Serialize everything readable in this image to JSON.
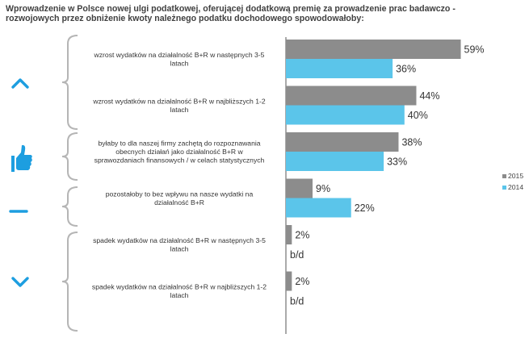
{
  "colors": {
    "series_2015": "#8c8c8c",
    "series_2014": "#5bc5ea",
    "icon": "#1d9ee0",
    "brace": "#b5b5b5",
    "axis": "#555555"
  },
  "chart_data": {
    "type": "bar",
    "orientation": "horizontal",
    "title": "Wprowadzenie w Polsce nowej ulgi podatkowej, oferującej dodatkową premię za prowadzenie prac badawczo - rozwojowych przez obniżenie kwoty należnego podatku dochodowego spowodowałoby:",
    "title_lines": [
      "Wprowadzenie w Polsce nowej ulgi podatkowej, oferującej dodatkową premię za prowadzenie prac badawczo -",
      "rozwojowych przez obniżenie kwoty należnego podatku dochodowego spowodowałoby:"
    ],
    "xlim": [
      0,
      100
    ],
    "legend_position": "right",
    "categories": [
      [
        "wzrost wydatków na działalność B+R w następnych 3-5",
        "latach"
      ],
      [
        "wzrost wydatków na działalność B+R w najbliższych 1-2",
        "latach"
      ],
      [
        "byłaby to dla naszej firmy zachętą do rozpoznawania",
        "obecnych działań jako działalność B+R w",
        "sprawozdaniach finansowych / w celach statystycznych"
      ],
      [
        "pozostałoby to bez wpływu na nasze wydatki na",
        "działalność B+R"
      ],
      [
        "spadek wydatków na działalność B+R w następnych 3-5",
        "latach"
      ],
      [
        "spadek wydatków na działalność B+R w najbliższych 1-2",
        "latach"
      ]
    ],
    "series": [
      {
        "name": "2015",
        "values": [
          59,
          44,
          38,
          9,
          2,
          2
        ],
        "labels": [
          "59%",
          "44%",
          "38%",
          "9%",
          "2%",
          "2%"
        ]
      },
      {
        "name": "2014",
        "values": [
          36,
          40,
          33,
          22,
          null,
          null
        ],
        "labels": [
          "36%",
          "40%",
          "33%",
          "22%",
          "b/d",
          "b/d"
        ]
      }
    ],
    "groups": [
      {
        "icon": "chevron-up-icon",
        "category_index": [
          0,
          1
        ]
      },
      {
        "icon": "thumbs-up-icon",
        "category_index": [
          2
        ]
      },
      {
        "icon": "minus-icon",
        "category_index": [
          3
        ]
      },
      {
        "icon": "chevron-down-icon",
        "category_index": [
          4,
          5
        ]
      }
    ]
  }
}
